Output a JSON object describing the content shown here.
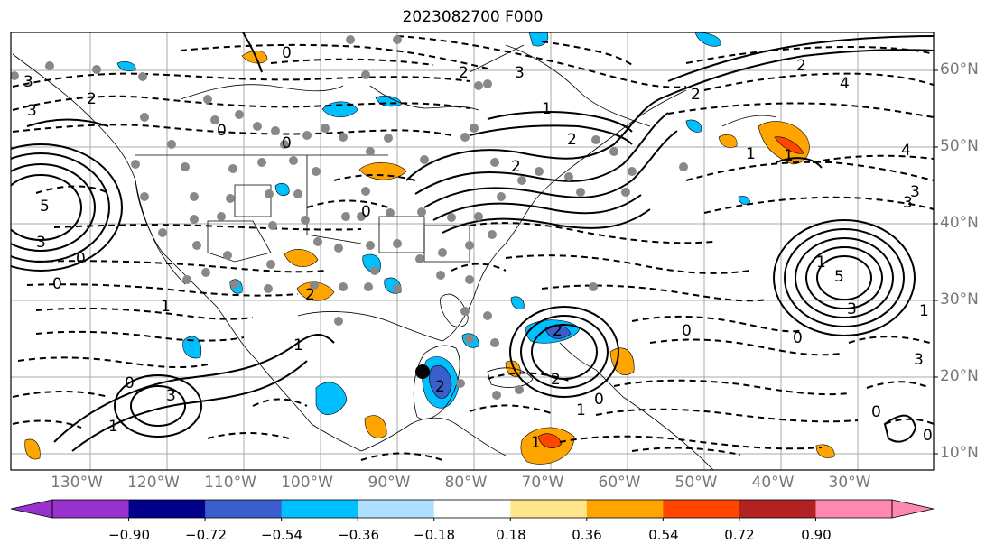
{
  "title": "2023082700 F000",
  "lat_labels": [
    "60°N",
    "50°N",
    "40°N",
    "30°N",
    "20°N",
    "10°N"
  ],
  "lon_labels": [
    "130°W",
    "120°W",
    "110°W",
    "100°W",
    "90°W",
    "80°W",
    "70°W",
    "60°W",
    "50°W",
    "40°W",
    "30°W"
  ],
  "colorbar": {
    "ticks": [
      "−0.90",
      "−0.72",
      "−0.54",
      "−0.36",
      "−0.18",
      "0.18",
      "0.36",
      "0.54",
      "0.72",
      "0.90"
    ],
    "colors": [
      "#9932cc",
      "#00008b",
      "#3a5fcd",
      "#00bfff",
      "#b0e0ff",
      "#ffffff",
      "#ffe68a",
      "#ffa500",
      "#ff4500",
      "#b22222",
      "#ff88b0"
    ]
  },
  "contour_labels": [
    "0",
    "2",
    "3",
    "2",
    "1",
    "3",
    "2",
    "4",
    "1",
    "2",
    "3",
    "0",
    "2",
    "0",
    "0",
    "5",
    "3",
    "0",
    "3",
    "2",
    "1",
    "1",
    "0",
    "1",
    "2",
    "3",
    "1",
    "0",
    "2",
    "2",
    "0",
    "0",
    "4",
    "3",
    "5",
    "3",
    "1",
    "0",
    "1",
    "3",
    "2",
    "0",
    "0",
    "1",
    "1"
  ]
}
